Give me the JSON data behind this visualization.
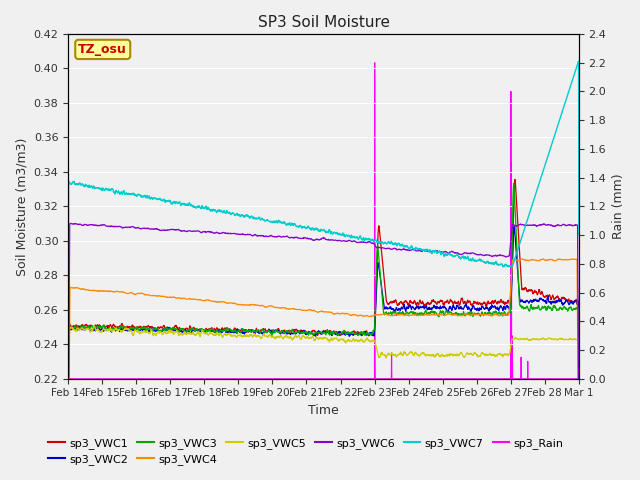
{
  "title": "SP3 Soil Moisture",
  "ylabel_left": "Soil Moisture (m3/m3)",
  "ylabel_right": "Rain (mm)",
  "xlabel": "Time",
  "ylim_left": [
    0.22,
    0.42
  ],
  "ylim_right": [
    0.0,
    2.4
  ],
  "plot_bg": "#e8e8e8",
  "fig_bg": "#f0f0f0",
  "annotation_text": "TZ_osu",
  "annotation_color": "#cc0000",
  "annotation_bg": "#ffff99",
  "annotation_border": "#aa8800",
  "series_colors": {
    "sp3_VWC1": "#cc0000",
    "sp3_VWC2": "#0000cc",
    "sp3_VWC3": "#00aa00",
    "sp3_VWC4": "#ff8800",
    "sp3_VWC5": "#cccc00",
    "sp3_VWC6": "#8800cc",
    "sp3_VWC7": "#00cccc",
    "sp3_Rain": "#ff00ff"
  },
  "n_points": 2000,
  "tick_labels": [
    "Feb 14",
    "Feb 15",
    "Feb 16",
    "Feb 17",
    "Feb 18",
    "Feb 19",
    "Feb 20",
    "Feb 21",
    "Feb 22",
    "Feb 23",
    "Feb 24",
    "Feb 25",
    "Feb 26",
    "Feb 27",
    "Feb 28",
    "Mar 1"
  ],
  "yticks_left": [
    0.22,
    0.24,
    0.26,
    0.28,
    0.3,
    0.32,
    0.34,
    0.36,
    0.38,
    0.4,
    0.42
  ],
  "yticks_right": [
    0.0,
    0.2,
    0.4,
    0.6,
    0.8,
    1.0,
    1.2,
    1.4,
    1.6,
    1.8,
    2.0,
    2.2,
    2.4
  ]
}
